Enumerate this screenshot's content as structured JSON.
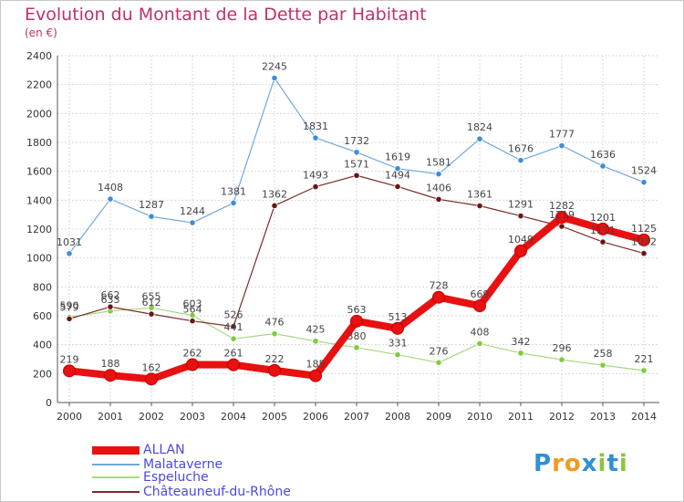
{
  "header": {
    "title": "Evolution du Montant de la Dette par Habitant",
    "subtitle": "(en €)"
  },
  "logo": {
    "text": "Proxiti"
  },
  "chart_data": {
    "type": "line",
    "x": [
      "2000",
      "2001",
      "2002",
      "2003",
      "2004",
      "2005",
      "2006",
      "2007",
      "2008",
      "2009",
      "2010",
      "2011",
      "2012",
      "2013",
      "2014"
    ],
    "ylim": [
      0,
      2400
    ],
    "yticks": [
      "0",
      "200",
      "400",
      "600",
      "800",
      "1000",
      "1200",
      "1400",
      "1600",
      "1800",
      "2000",
      "2200",
      "2400"
    ],
    "grid": true,
    "legend_position": "bottom-left",
    "series": [
      {
        "name": "Malataverne",
        "color": "#6fa8dc",
        "values": [
          1031,
          1408,
          1287,
          1244,
          1381,
          2245,
          1831,
          1732,
          1619,
          1581,
          1824,
          1676,
          1777,
          1636,
          1524
        ]
      },
      {
        "name": "Espeluche",
        "color": "#a8d880",
        "values": [
          590,
          633,
          655,
          603,
          441,
          476,
          425,
          380,
          331,
          276,
          408,
          342,
          296,
          258,
          221
        ]
      },
      {
        "name": "Châteauneuf-du-Rhône",
        "color": "#7a2a2a",
        "values": [
          579,
          662,
          612,
          564,
          526,
          1362,
          1493,
          1571,
          1494,
          1406,
          1361,
          1291,
          1219,
          1111,
          1032
        ]
      },
      {
        "name": "ALLAN",
        "color": "#e81010",
        "values": [
          219,
          188,
          162,
          262,
          261,
          222,
          185,
          563,
          513,
          728,
          669,
          1049,
          1282,
          1201,
          1125
        ]
      }
    ]
  }
}
